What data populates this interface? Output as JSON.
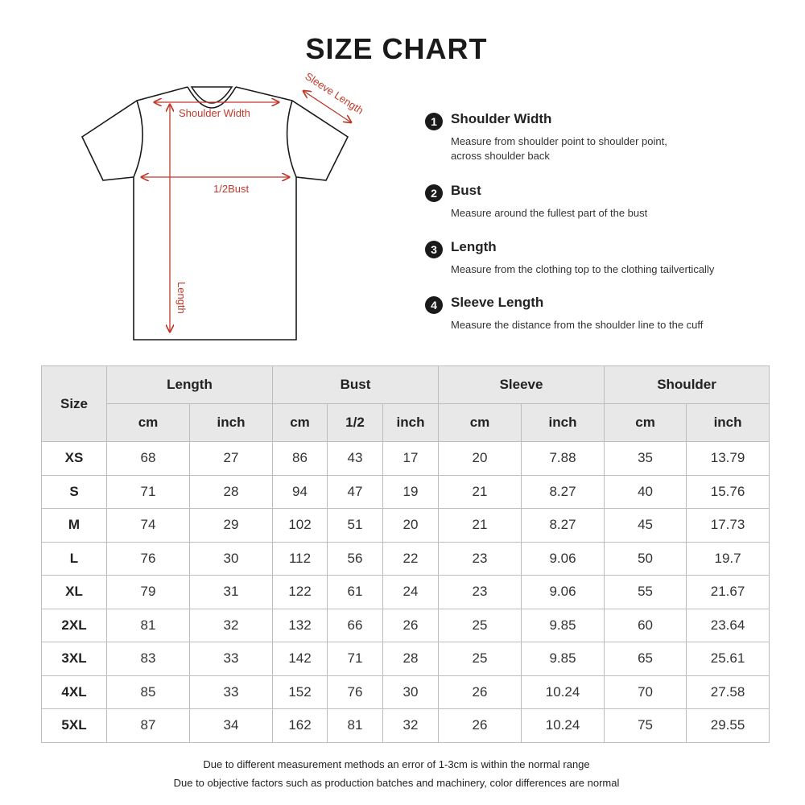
{
  "title": "SIZE CHART",
  "diagram": {
    "shoulder_label": "Shoulder Width",
    "bust_label": "1/2Bust",
    "length_label": "Length",
    "sleeve_label": "Sleeve Length",
    "arrow_color": "#c0392b"
  },
  "legend": [
    {
      "num": "1",
      "title": "Shoulder Width",
      "desc": [
        "Measure from shoulder point to shoulder point,",
        "across shoulder back"
      ]
    },
    {
      "num": "2",
      "title": "Bust",
      "desc": [
        "Measure around the fullest part of the bust"
      ]
    },
    {
      "num": "3",
      "title": "Length",
      "desc": [
        "Measure from the clothing top to the clothing tailvertically"
      ]
    },
    {
      "num": "4",
      "title": "Sleeve Length",
      "desc": [
        "Measure the distance from the shoulder line to the cuff"
      ]
    }
  ],
  "table": {
    "size_header": "Size",
    "groups": [
      "Length",
      "Bust",
      "Sleeve",
      "Shoulder"
    ],
    "subheaders": [
      "cm",
      "inch",
      "cm",
      "1/2",
      "inch",
      "cm",
      "inch",
      "cm",
      "inch"
    ],
    "rows": [
      [
        "XS",
        "68",
        "27",
        "86",
        "43",
        "17",
        "20",
        "7.88",
        "35",
        "13.79"
      ],
      [
        "S",
        "71",
        "28",
        "94",
        "47",
        "19",
        "21",
        "8.27",
        "40",
        "15.76"
      ],
      [
        "M",
        "74",
        "29",
        "102",
        "51",
        "20",
        "21",
        "8.27",
        "45",
        "17.73"
      ],
      [
        "L",
        "76",
        "30",
        "112",
        "56",
        "22",
        "23",
        "9.06",
        "50",
        "19.7"
      ],
      [
        "XL",
        "79",
        "31",
        "122",
        "61",
        "24",
        "23",
        "9.06",
        "55",
        "21.67"
      ],
      [
        "2XL",
        "81",
        "32",
        "132",
        "66",
        "26",
        "25",
        "9.85",
        "60",
        "23.64"
      ],
      [
        "3XL",
        "83",
        "33",
        "142",
        "71",
        "28",
        "25",
        "9.85",
        "65",
        "25.61"
      ],
      [
        "4XL",
        "85",
        "33",
        "152",
        "76",
        "30",
        "26",
        "10.24",
        "70",
        "27.58"
      ],
      [
        "5XL",
        "87",
        "34",
        "162",
        "81",
        "32",
        "26",
        "10.24",
        "75",
        "29.55"
      ]
    ]
  },
  "notes": [
    "Due to different measurement methods an error of 1-3cm is within the normal range",
    "Due to objective factors such as production batches and machinery, color differences are normal"
  ]
}
